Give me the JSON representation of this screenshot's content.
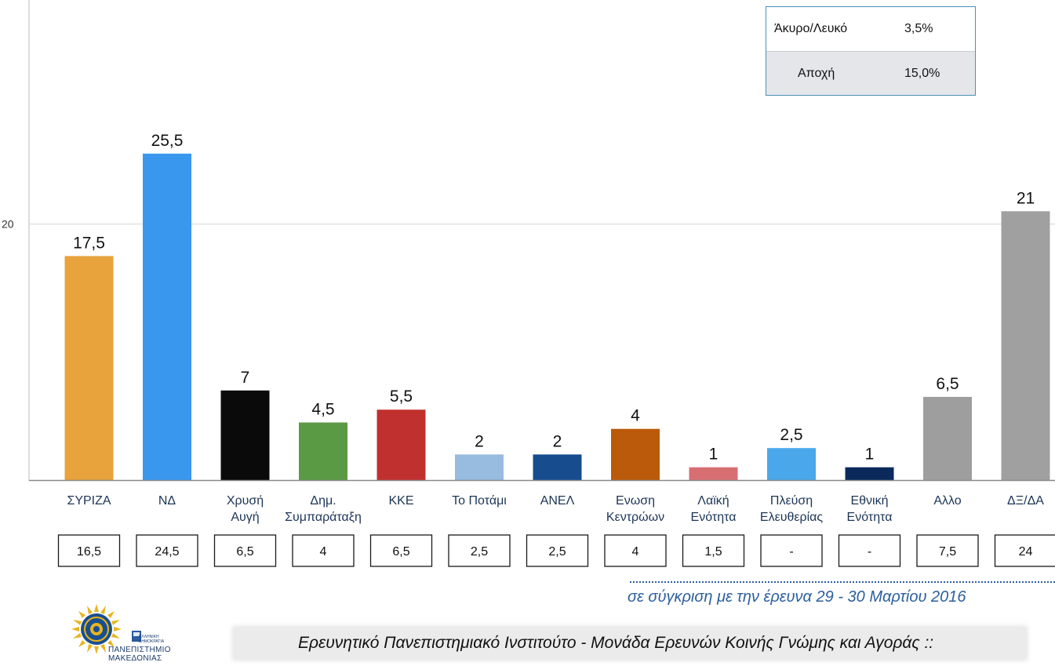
{
  "chart_data": {
    "type": "bar",
    "categories": [
      [
        "ΣΥΡΙΖΑ"
      ],
      [
        "ΝΔ"
      ],
      [
        "Χρυσή",
        "Αυγή"
      ],
      [
        "Δημ.",
        "Συμπαράταξη"
      ],
      [
        "ΚΚΕ"
      ],
      [
        "Το Ποτάμι"
      ],
      [
        "ΑΝΕΛ"
      ],
      [
        "Ενωση",
        "Κεντρώων"
      ],
      [
        "Λαϊκή",
        "Ενότητα"
      ],
      [
        "Πλεύση",
        "Ελευθερίας"
      ],
      [
        "Εθνική",
        "Ενότητα"
      ],
      [
        "Αλλο"
      ],
      [
        "ΔΞ/ΔΑ"
      ]
    ],
    "values": [
      17.5,
      25.5,
      7,
      4.5,
      5.5,
      2,
      2,
      4,
      1,
      2.5,
      1,
      6.5,
      21
    ],
    "value_labels": [
      "17,5",
      "25,5",
      "7",
      "4,5",
      "5,5",
      "2",
      "2",
      "4",
      "1",
      "2,5",
      "1",
      "6,5",
      "21"
    ],
    "colors": [
      "#e8a33d",
      "#3a97ee",
      "#0a0a0a",
      "#5a9a44",
      "#c0302f",
      "#98bbe0",
      "#174c8f",
      "#bb5a0a",
      "#d76f72",
      "#4aa8ea",
      "#0b2a5b",
      "#9e9e9e",
      "#a0a0a0"
    ],
    "previous_values": [
      "16,5",
      "24,5",
      "6,5",
      "4",
      "6,5",
      "2,5",
      "2,5",
      "4",
      "1,5",
      "-",
      "-",
      "7,5",
      "24"
    ],
    "y_ticks": [
      20
    ],
    "y_tick_labels": [
      "20"
    ],
    "ylim": [
      0,
      37.5
    ],
    "grid": true,
    "title": "",
    "xlabel": "",
    "ylabel": ""
  },
  "stats": [
    {
      "label": "Άκυρο/Λευκό",
      "value": "3,5%"
    },
    {
      "label": "Αποχή",
      "value": "15,0%"
    }
  ],
  "comparison_note": "σε σύγκριση με την έρευνα 29 - 30 Μαρτίου 2016",
  "footer_text": "Ερευνητικό Πανεπιστημιακό Ινστιτούτο - Μονάδα Ερευνών Κοινής Γνώμης και Αγοράς ::",
  "logo": {
    "line1": "ΠΑΝΕΠΙΣΤΗΜΙΟ",
    "line2": "ΜΑΚΕΔΟΝΙΑΣ",
    "small1": "ΕΛΛΗΝΙΚΗ",
    "small2": "ΔΗΜΟΚΡΑΤΙΑ"
  }
}
